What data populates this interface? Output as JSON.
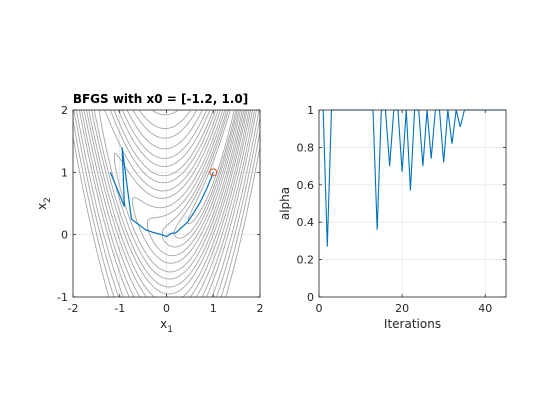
{
  "colors": {
    "contour": "#a6a6a6",
    "path": "#0072bd",
    "minimum_marker": "#d95319",
    "grid": "#e0e0e0",
    "axis": "#262626"
  },
  "chart_data": [
    {
      "type": "contour",
      "title": "BFGS with x0 = [-1.2, 1.0]",
      "xlabel": "x",
      "xlabel_sub": "1",
      "ylabel": "x",
      "ylabel_sub": "2",
      "xlim": [
        -2,
        2
      ],
      "ylim": [
        -1,
        2
      ],
      "xticks": [
        -2,
        -1,
        0,
        1,
        2
      ],
      "yticks": [
        -1,
        0,
        1,
        2
      ],
      "xtick_labels": [
        "-2",
        "-1",
        "0",
        "1",
        "2"
      ],
      "ytick_labels": [
        "-1",
        "0",
        "1",
        "2"
      ],
      "grid": true,
      "contour_function": "rosenbrock",
      "contour_levels": [
        0.3,
        0.7,
        1.2,
        2,
        3,
        4.5,
        6,
        8,
        10,
        13,
        16,
        20,
        25,
        30,
        38,
        46,
        56,
        68
      ],
      "minimum_marker": {
        "x": 1.0,
        "y": 1.0,
        "shape": "circle"
      },
      "path": {
        "x": [
          -1.2,
          -0.9,
          -0.95,
          -0.75,
          -0.45,
          -0.3,
          -0.1,
          0.0,
          0.1,
          0.2,
          0.3,
          0.45,
          0.6,
          0.72,
          0.85,
          0.95,
          1.0
        ],
        "y": [
          1.0,
          0.45,
          1.4,
          0.25,
          0.08,
          0.04,
          0.0,
          -0.03,
          0.02,
          0.03,
          0.1,
          0.2,
          0.37,
          0.52,
          0.72,
          0.9,
          1.0
        ]
      }
    },
    {
      "type": "line",
      "title": "",
      "xlabel": "Iterations",
      "ylabel": "alpha",
      "xlim": [
        0,
        45
      ],
      "ylim": [
        0,
        1
      ],
      "xticks": [
        0,
        20,
        40
      ],
      "yticks": [
        0,
        0.2,
        0.4,
        0.6,
        0.8,
        1
      ],
      "xtick_labels": [
        "0",
        "20",
        "40"
      ],
      "ytick_labels": [
        "0",
        "0.2",
        "0.4",
        "0.6",
        "0.8",
        "1"
      ],
      "grid": true,
      "series": [
        {
          "x": [
            1,
            2,
            3,
            4,
            5,
            6,
            7,
            8,
            9,
            10,
            11,
            12,
            13,
            14,
            15,
            16,
            17,
            18,
            19,
            20,
            21,
            22,
            23,
            24,
            25,
            26,
            27,
            28,
            29,
            30,
            31,
            32,
            33,
            34,
            35,
            36,
            37,
            38,
            39,
            40,
            41,
            42,
            43,
            44,
            45
          ],
          "y": [
            1,
            0.27,
            1,
            1,
            1,
            1,
            1,
            1,
            1,
            1,
            1,
            1,
            1,
            0.36,
            1,
            1,
            0.7,
            1,
            1,
            0.67,
            1,
            0.57,
            1,
            1,
            0.7,
            1,
            0.74,
            1,
            1,
            0.72,
            1,
            0.82,
            1,
            0.91,
            1,
            1,
            1,
            1,
            1,
            1,
            1,
            1,
            1,
            1,
            1
          ]
        }
      ]
    }
  ]
}
